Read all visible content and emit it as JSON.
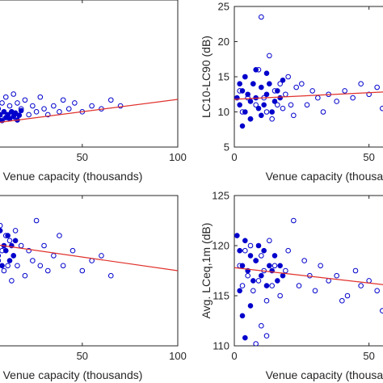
{
  "chart_data": [
    {
      "type": "scatter",
      "title": "",
      "xlabel": "Venue capacity (thousands)",
      "ylabel": "",
      "xlim": [
        -10,
        100
      ],
      "ylim": [
        0,
        25
      ],
      "xticks": [
        50,
        100
      ],
      "yticks": [],
      "trend": [
        [
          -10,
          3.5
        ],
        [
          100,
          8.1
        ]
      ],
      "series": [
        {
          "marker": "open",
          "points": [
            [
              2,
              6
            ],
            [
              3,
              7
            ],
            [
              4,
              5.5
            ],
            [
              5,
              8
            ],
            [
              6,
              6.5
            ],
            [
              7,
              5
            ],
            [
              8,
              7.5
            ],
            [
              9,
              6
            ],
            [
              10,
              8.5
            ],
            [
              11,
              5.5
            ],
            [
              12,
              7
            ],
            [
              13,
              6
            ],
            [
              14,
              9
            ],
            [
              15,
              5
            ],
            [
              16,
              7.5
            ],
            [
              18,
              6.5
            ],
            [
              20,
              8
            ],
            [
              22,
              5.5
            ],
            [
              24,
              7
            ],
            [
              26,
              6
            ],
            [
              28,
              8.5
            ],
            [
              30,
              6.5
            ],
            [
              32,
              5.5
            ],
            [
              35,
              7
            ],
            [
              38,
              6
            ],
            [
              40,
              8
            ],
            [
              43,
              6.5
            ],
            [
              46,
              7.5
            ],
            [
              50,
              6
            ],
            [
              55,
              7
            ],
            [
              60,
              6.5
            ],
            [
              65,
              8
            ],
            [
              70,
              7
            ]
          ]
        },
        {
          "marker": "filled",
          "points": [
            [
              1,
              5
            ],
            [
              2,
              5.5
            ],
            [
              3,
              4.5
            ],
            [
              4,
              6
            ],
            [
              5,
              5
            ],
            [
              6,
              4.8
            ],
            [
              7,
              5.5
            ],
            [
              8,
              4.5
            ],
            [
              9,
              6
            ],
            [
              10,
              5
            ],
            [
              11,
              5.5
            ],
            [
              12,
              4.8
            ],
            [
              13,
              6
            ],
            [
              14,
              5.2
            ],
            [
              15,
              5.8
            ],
            [
              16,
              4.6
            ],
            [
              17,
              5.4
            ],
            [
              18,
              6.2
            ]
          ]
        }
      ]
    },
    {
      "type": "scatter",
      "title": "",
      "xlabel": "Venue capacity (thousands)",
      "ylabel": "LC10-LC90 (dB)",
      "xlim": [
        0,
        75
      ],
      "ylim": [
        5,
        25
      ],
      "xticks": [
        0,
        50
      ],
      "yticks": [
        5,
        10,
        15,
        20,
        25
      ],
      "trend": [
        [
          0,
          11.8
        ],
        [
          75,
          13.2
        ]
      ],
      "series": [
        {
          "marker": "open",
          "points": [
            [
              2,
              13
            ],
            [
              3,
              10
            ],
            [
              4,
              15
            ],
            [
              5,
              12
            ],
            [
              6,
              9
            ],
            [
              7,
              14
            ],
            [
              8,
              11
            ],
            [
              9,
              16
            ],
            [
              10,
              23.5
            ],
            [
              11,
              12
            ],
            [
              12,
              10
            ],
            [
              13,
              18
            ],
            [
              14,
              9
            ],
            [
              15,
              13
            ],
            [
              16,
              11
            ],
            [
              17,
              14
            ],
            [
              18,
              10.5
            ],
            [
              19,
              12.5
            ],
            [
              20,
              15
            ],
            [
              21,
              11
            ],
            [
              22,
              9.5
            ],
            [
              23,
              13.5
            ],
            [
              25,
              14
            ],
            [
              27,
              11
            ],
            [
              29,
              13
            ],
            [
              31,
              12
            ],
            [
              33,
              10
            ],
            [
              35,
              12.5
            ],
            [
              38,
              11.5
            ],
            [
              41,
              13
            ],
            [
              44,
              12
            ],
            [
              47,
              14
            ],
            [
              50,
              12.5
            ],
            [
              53,
              13.5
            ],
            [
              55,
              10.5
            ],
            [
              60,
              12.5
            ],
            [
              65,
              13
            ],
            [
              70,
              12.5
            ],
            [
              73,
              17
            ]
          ]
        },
        {
          "marker": "filled",
          "points": [
            [
              1,
              12
            ],
            [
              2,
              11
            ],
            [
              3,
              13
            ],
            [
              4,
              10
            ],
            [
              5,
              12.5
            ],
            [
              6,
              11.5
            ],
            [
              7,
              14
            ],
            [
              8,
              12
            ],
            [
              9,
              10.5
            ],
            [
              10,
              13.5
            ],
            [
              11,
              11
            ],
            [
              12,
              12.5
            ],
            [
              13,
              14
            ],
            [
              14,
              10
            ],
            [
              15,
              11.5
            ],
            [
              16,
              13
            ],
            [
              17,
              12
            ],
            [
              18,
              14.5
            ],
            [
              4,
              15
            ],
            [
              6,
              9
            ],
            [
              3,
              8
            ],
            [
              8,
              16
            ],
            [
              2,
              14
            ],
            [
              10,
              9.5
            ],
            [
              12,
              15.5
            ]
          ]
        }
      ]
    },
    {
      "type": "scatter",
      "title": "",
      "xlabel": "Venue capacity (thousands)",
      "ylabel": "",
      "xlim": [
        -10,
        100
      ],
      "ylim": [
        110,
        125
      ],
      "xticks": [
        50,
        100
      ],
      "yticks": [],
      "trend": [
        [
          -10,
          120.5
        ],
        [
          100,
          117.5
        ]
      ],
      "series": [
        {
          "marker": "open",
          "points": [
            [
              2,
              119
            ],
            [
              3,
              121
            ],
            [
              4,
              117
            ],
            [
              5,
              120
            ],
            [
              6,
              118.5
            ],
            [
              7,
              122
            ],
            [
              8,
              119.5
            ],
            [
              9,
              117.5
            ],
            [
              10,
              121
            ],
            [
              11,
              118
            ],
            [
              12,
              120.5
            ],
            [
              13,
              116.5
            ],
            [
              14,
              119
            ],
            [
              15,
              121.5
            ],
            [
              16,
              118
            ],
            [
              18,
              120
            ],
            [
              20,
              117
            ],
            [
              22,
              119.5
            ],
            [
              24,
              118.5
            ],
            [
              26,
              122.5
            ],
            [
              28,
              118
            ],
            [
              30,
              120
            ],
            [
              32,
              117.5
            ],
            [
              35,
              119
            ],
            [
              38,
              121
            ],
            [
              40,
              118
            ],
            [
              45,
              119.5
            ],
            [
              50,
              117.5
            ],
            [
              55,
              118.5
            ],
            [
              60,
              119
            ],
            [
              65,
              117
            ]
          ]
        },
        {
          "marker": "filled",
          "points": [
            [
              1,
              120
            ],
            [
              2,
              119.5
            ],
            [
              3,
              121
            ],
            [
              4,
              118.5
            ],
            [
              5,
              120.5
            ],
            [
              6,
              119
            ],
            [
              7,
              121.5
            ],
            [
              8,
              118
            ],
            [
              9,
              120
            ],
            [
              10,
              119.5
            ],
            [
              11,
              121
            ],
            [
              12,
              118.5
            ],
            [
              13,
              120
            ],
            [
              14,
              119
            ],
            [
              15,
              120.5
            ]
          ]
        }
      ]
    },
    {
      "type": "scatter",
      "title": "",
      "xlabel": "Venue capacity (thousands)",
      "ylabel": "Avg. LCeq,1m (dB)",
      "xlim": [
        0,
        75
      ],
      "ylim": [
        110,
        125
      ],
      "xticks": [
        0,
        50
      ],
      "yticks": [
        110,
        115,
        120,
        125
      ],
      "trend": [
        [
          0,
          117.8
        ],
        [
          75,
          115.5
        ]
      ],
      "series": [
        {
          "marker": "open",
          "points": [
            [
              2,
              118
            ],
            [
              3,
              116
            ],
            [
              4,
              119.5
            ],
            [
              5,
              117
            ],
            [
              6,
              120
            ],
            [
              7,
              115.5
            ],
            [
              8,
              118.5
            ],
            [
              9,
              116.5
            ],
            [
              10,
              119
            ],
            [
              11,
              117.5
            ],
            [
              12,
              114.5
            ],
            [
              13,
              120.5
            ],
            [
              14,
              116
            ],
            [
              15,
              118
            ],
            [
              17,
              115
            ],
            [
              19,
              117.5
            ],
            [
              20,
              119.5
            ],
            [
              22,
              122.5
            ],
            [
              24,
              116
            ],
            [
              26,
              118.5
            ],
            [
              28,
              117
            ],
            [
              30,
              115.5
            ],
            [
              32,
              118
            ],
            [
              35,
              116.5
            ],
            [
              38,
              117
            ],
            [
              40,
              114.5
            ],
            [
              42,
              115
            ],
            [
              45,
              117.5
            ],
            [
              47,
              116
            ],
            [
              50,
              116.5
            ],
            [
              53,
              115.5
            ],
            [
              55,
              113.5
            ],
            [
              58,
              114
            ],
            [
              60,
              115
            ],
            [
              63,
              113
            ],
            [
              65,
              118
            ],
            [
              70,
              120.2
            ],
            [
              73,
              116.5
            ],
            [
              8,
              110.2
            ],
            [
              12,
              111
            ],
            [
              10,
              112
            ]
          ]
        },
        {
          "marker": "filled",
          "points": [
            [
              1,
              121
            ],
            [
              2,
              119.5
            ],
            [
              3,
              118
            ],
            [
              4,
              120.5
            ],
            [
              5,
              117.5
            ],
            [
              6,
              119
            ],
            [
              7,
              116.5
            ],
            [
              8,
              118.5
            ],
            [
              9,
              120
            ],
            [
              10,
              117
            ],
            [
              11,
              119.5
            ],
            [
              12,
              116
            ],
            [
              13,
              118
            ],
            [
              14,
              117.5
            ],
            [
              15,
              119
            ],
            [
              16,
              116.5
            ],
            [
              17,
              118
            ],
            [
              18,
              117
            ],
            [
              3,
              113
            ],
            [
              2,
              115.5
            ],
            [
              6,
              114
            ],
            [
              4,
              110.8
            ]
          ]
        }
      ]
    }
  ]
}
